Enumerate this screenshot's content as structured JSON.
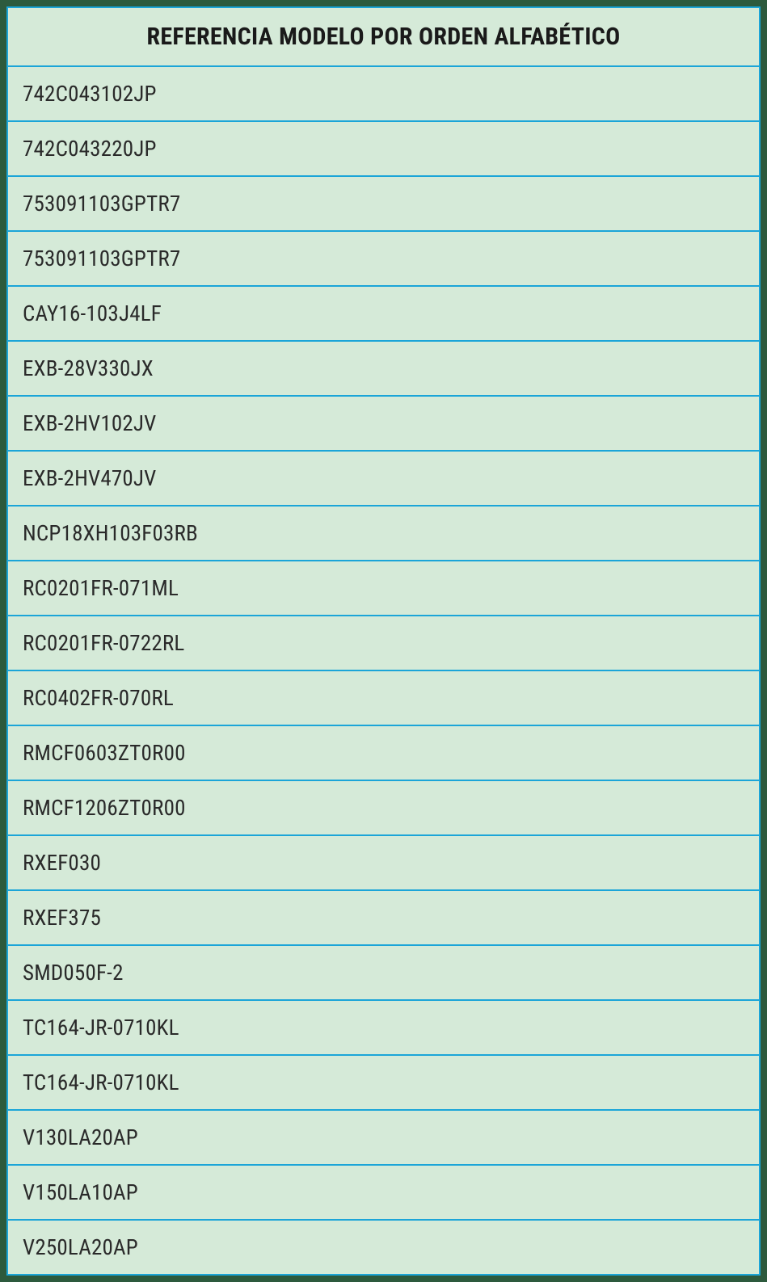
{
  "table": {
    "type": "table",
    "header": "REFERENCIA MODELO POR ORDEN ALFABÉTICO",
    "header_fontsize": 30,
    "header_fontweight": "bold",
    "row_fontsize": 27,
    "background_color": "#d5ead8",
    "border_color": "#1ba5d8",
    "page_background": "#2d5a3d",
    "text_color": "#2a2a2a",
    "header_text_color": "#1a1a1a",
    "border_width": 2,
    "cell_padding_vertical": 17,
    "cell_padding_horizontal": 18,
    "header_align": "center",
    "row_align": "left",
    "rows": [
      "742C043102JP",
      "742C043220JP",
      "753091103GPTR7",
      "753091103GPTR7",
      "CAY16-103J4LF",
      "EXB-28V330JX",
      "EXB-2HV102JV",
      "EXB-2HV470JV",
      "NCP18XH103F03RB",
      "RC0201FR-071ML",
      "RC0201FR-0722RL",
      "RC0402FR-070RL",
      "RMCF0603ZT0R00",
      "RMCF1206ZT0R00",
      "RXEF030",
      "RXEF375",
      "SMD050F-2",
      "TC164-JR-0710KL",
      "TC164-JR-0710KL",
      "V130LA20AP",
      "V150LA10AP",
      "V250LA20AP"
    ]
  }
}
